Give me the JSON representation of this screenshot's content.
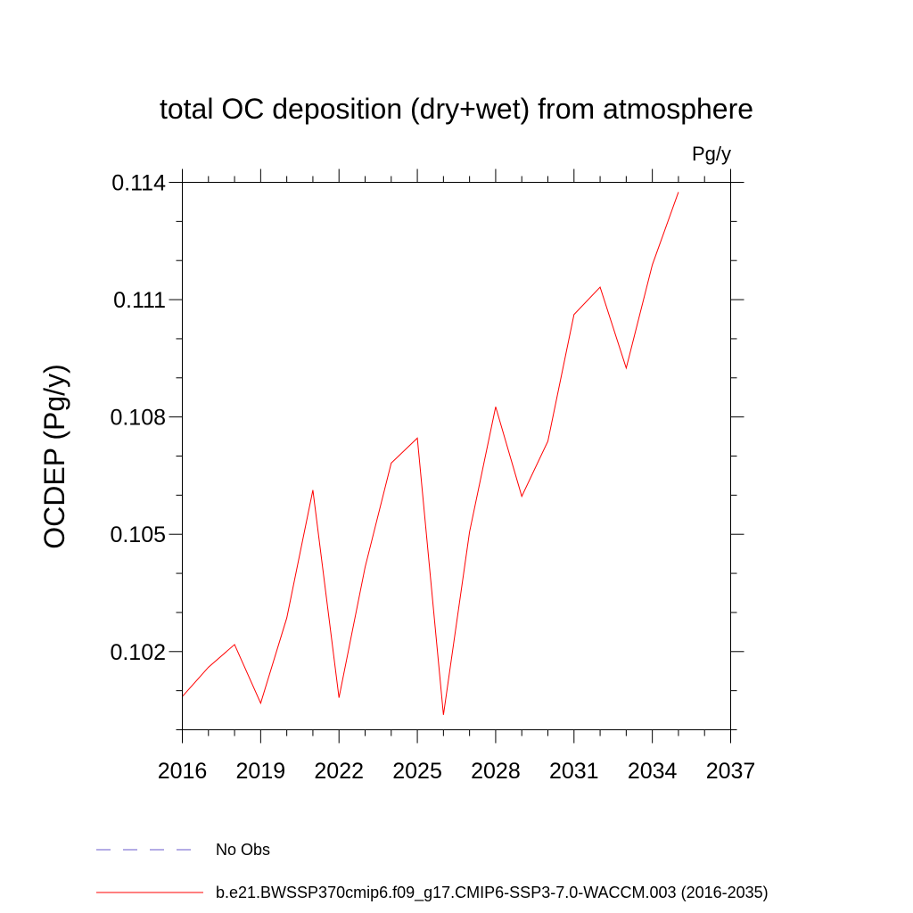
{
  "chart_data": {
    "type": "line",
    "title": "total OC deposition (dry+wet) from atmosphere",
    "units": "Pg/y",
    "xlabel": "",
    "ylabel": "OCDEP  (Pg/y)",
    "xlim": [
      2016,
      2037
    ],
    "ylim": [
      0.1,
      0.114
    ],
    "xticks": [
      2016,
      2019,
      2022,
      2025,
      2028,
      2031,
      2034,
      2037
    ],
    "xtick_labels": [
      "2016",
      "2019",
      "2022",
      "2025",
      "2028",
      "2031",
      "2034",
      "2037"
    ],
    "yticks": [
      0.102,
      0.105,
      0.108,
      0.111,
      0.114
    ],
    "ytick_labels": [
      "0.102",
      "0.105",
      "0.108",
      "0.111",
      "0.114"
    ],
    "y_minor_step": 0.001,
    "grid": false,
    "series": [
      {
        "name": "b.e21.BWSSP370cmip6.f09_g17.CMIP6-SSP3-7.0-WACCM.003 (2016-2035)",
        "color": "#ff0000",
        "style": "solid",
        "x": [
          2016,
          2017,
          2018,
          2019,
          2020,
          2021,
          2022,
          2023,
          2024,
          2025,
          2026,
          2027,
          2028,
          2029,
          2030,
          2031,
          2032,
          2033,
          2034,
          2035
        ],
        "values": [
          0.10085,
          0.1016,
          0.10218,
          0.10068,
          0.10286,
          0.10613,
          0.10082,
          0.10416,
          0.10682,
          0.10746,
          0.10038,
          0.10506,
          0.10826,
          0.10597,
          0.10738,
          0.11062,
          0.11132,
          0.10925,
          0.11189,
          0.11375
        ]
      }
    ],
    "legend": [
      {
        "label": "No Obs",
        "color": "#6a5acd",
        "style": "dashed"
      },
      {
        "label": "b.e21.BWSSP370cmip6.f09_g17.CMIP6-SSP3-7.0-WACCM.003 (2016-2035)",
        "color": "#ff0000",
        "style": "solid"
      }
    ],
    "legend_position": "bottom-left"
  }
}
